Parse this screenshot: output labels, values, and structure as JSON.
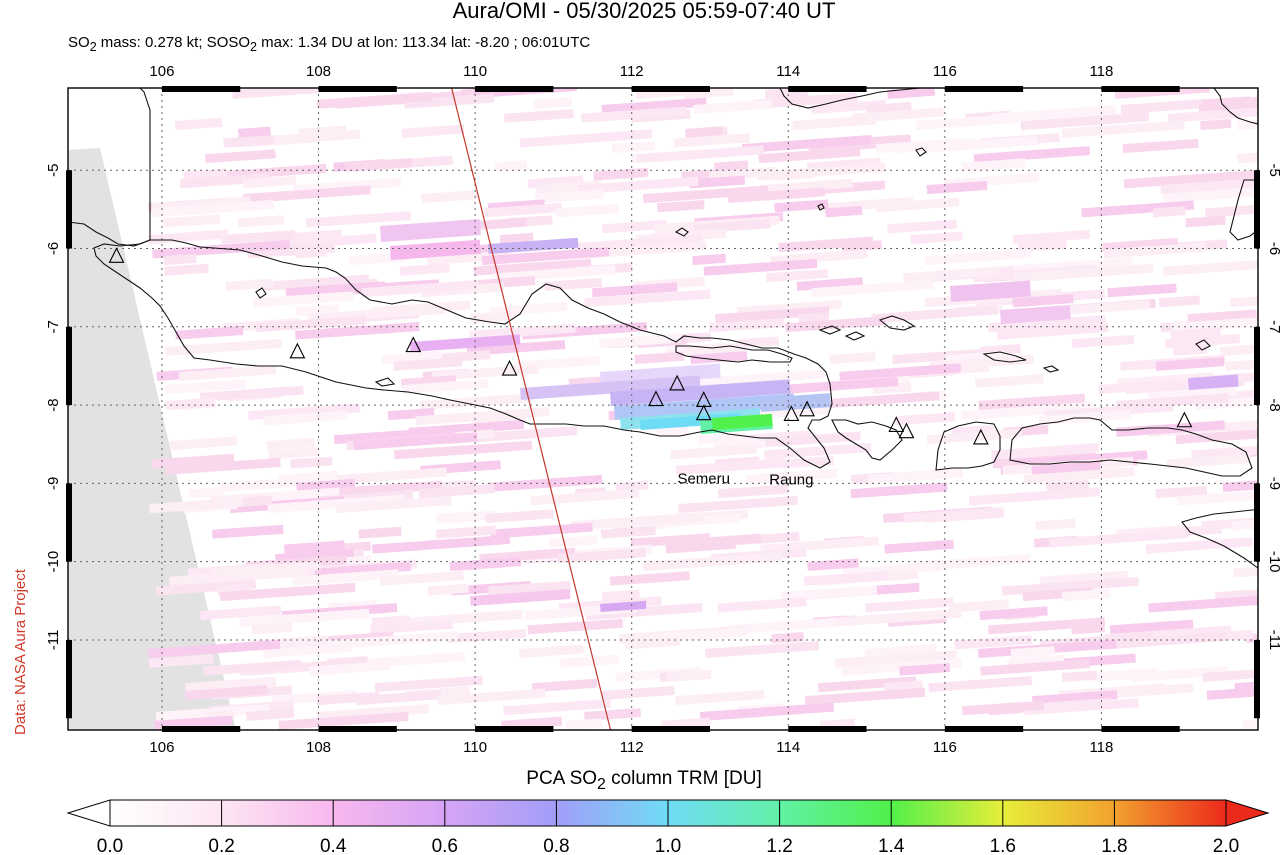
{
  "title": "Aura/OMI - 05/30/2025 05:59-07:40 UT",
  "subtitle": {
    "so2_label": "SO",
    "so2_sub": "2",
    "mass_text": " mass: 0.278 kt; SO",
    "max_text": " max: 1.34 DU at lon: 113.34 lat: -8.20 ; 06:01UTC"
  },
  "credit": "Data: NASA Aura Project",
  "map": {
    "lon_range": [
      104.8,
      120.0
    ],
    "lat_range": [
      -12.15,
      -3.95
    ],
    "lon_ticks": [
      "106",
      "108",
      "110",
      "112",
      "114",
      "116",
      "118"
    ],
    "lat_ticks": [
      "-5",
      "-6",
      "-7",
      "-8",
      "-9",
      "-10",
      "-11"
    ],
    "volcano_labels": [
      {
        "name": "Semeru",
        "lon": 112.92,
        "lat": -8.11
      },
      {
        "name": "Raung",
        "lon": 114.04,
        "lat": -8.12
      }
    ],
    "volcanoes": [
      {
        "lon": 105.42,
        "lat": -6.1
      },
      {
        "lon": 107.73,
        "lat": -7.32
      },
      {
        "lon": 109.21,
        "lat": -7.24
      },
      {
        "lon": 110.44,
        "lat": -7.54
      },
      {
        "lon": 112.31,
        "lat": -7.93
      },
      {
        "lon": 112.58,
        "lat": -7.73
      },
      {
        "lon": 112.92,
        "lat": -7.94
      },
      {
        "lon": 112.92,
        "lat": -8.11
      },
      {
        "lon": 114.04,
        "lat": -8.12
      },
      {
        "lon": 114.24,
        "lat": -8.06
      },
      {
        "lon": 115.38,
        "lat": -8.26
      },
      {
        "lon": 115.51,
        "lat": -8.34
      },
      {
        "lon": 116.46,
        "lat": -8.42
      },
      {
        "lon": 119.06,
        "lat": -8.2
      }
    ],
    "orbit_track": {
      "start": {
        "lon": 109.7,
        "lat": -3.95
      },
      "end": {
        "lon": 111.73,
        "lat": -12.15
      }
    },
    "so2_max_du": 1.34,
    "so2_max_location": {
      "lon": 113.34,
      "lat": -8.2
    }
  },
  "colorbar": {
    "title_prefix": "PCA SO",
    "title_sub": "2",
    "title_suffix": " column TRM [DU]",
    "ticks": [
      "0.0",
      "0.2",
      "0.4",
      "0.6",
      "0.8",
      "1.0",
      "1.2",
      "1.4",
      "1.6",
      "1.8",
      "2.0"
    ],
    "range": [
      0.0,
      2.0
    ]
  }
}
